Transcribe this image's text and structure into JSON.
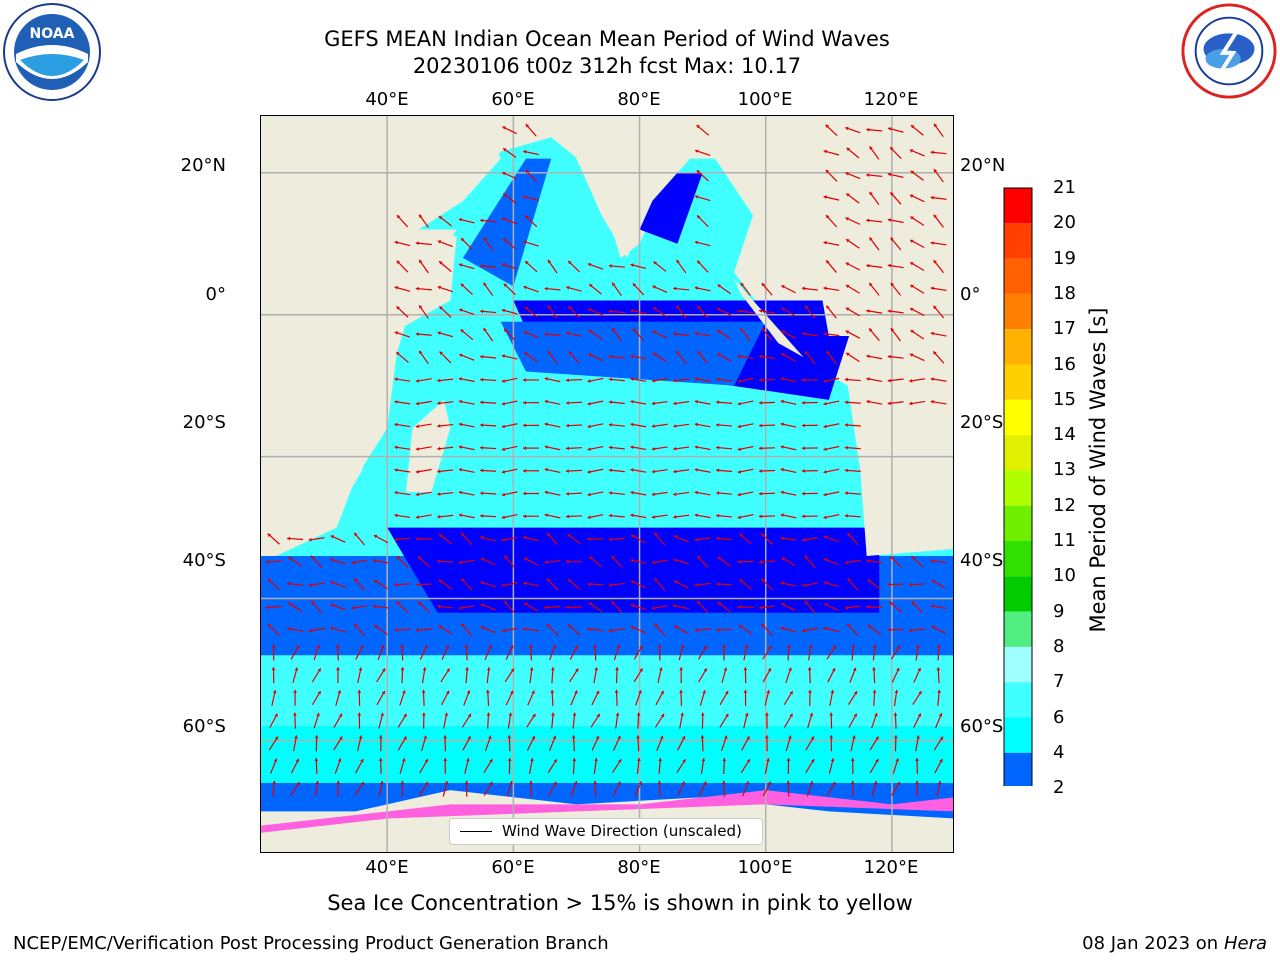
{
  "header": {
    "title_line1": "GEFS MEAN Indian Ocean Mean Period of Wind Waves",
    "title_line2": "20230106 t00z 312h fcst   Max: 10.17"
  },
  "logos": {
    "left_name": "noaa-logo",
    "left_text": "NOAA",
    "right_name": "nws-logo"
  },
  "map": {
    "lon_labels": [
      "40°E",
      "60°E",
      "80°E",
      "100°E",
      "120°E"
    ],
    "lat_labels": [
      "20°N",
      "0°",
      "20°S",
      "40°S",
      "60°S"
    ],
    "legend_label": "Wind Wave Direction (unscaled)",
    "extent": {
      "lon_min": 20,
      "lon_max": 130,
      "lat_min": -76,
      "lat_max": 28
    },
    "land_color": "#eeecdd",
    "arrow_color": "#e00000"
  },
  "colorbar": {
    "label": "Mean Period of Wind Waves [s]",
    "ticks": [
      "2",
      "4",
      "6",
      "7",
      "8",
      "9",
      "10",
      "11",
      "12",
      "13",
      "14",
      "15",
      "16",
      "17",
      "18",
      "19",
      "20",
      "21"
    ],
    "colors": [
      "#0066ff",
      "#00ffff",
      "#40ffff",
      "#a0ffff",
      "#50ee80",
      "#00cc00",
      "#30e000",
      "#70ee00",
      "#b0ff00",
      "#e0f000",
      "#ffff00",
      "#ffd000",
      "#ffb000",
      "#ff8000",
      "#ff6000",
      "#ff4000",
      "#ff0000"
    ],
    "under_color": "#0000ff"
  },
  "caption": "Sea Ice Concentration > 15% is shown in pink to yellow",
  "footer": {
    "left": "NCEP/EMC/Verification Post Processing Product Generation Branch",
    "right_date": "08 Jan 2023 on ",
    "right_host": "Hera"
  }
}
